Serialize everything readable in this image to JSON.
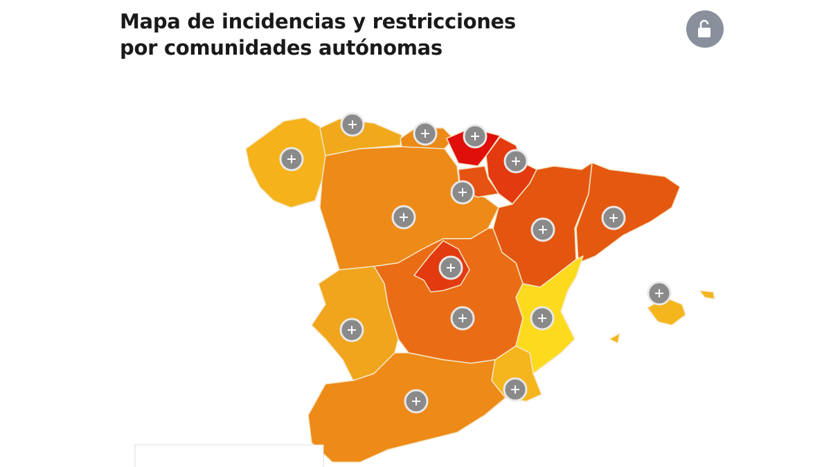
{
  "header": {
    "title_lines": [
      "Mapa de incidencias y restricciones",
      "por comunidades autónomas"
    ]
  }
}
